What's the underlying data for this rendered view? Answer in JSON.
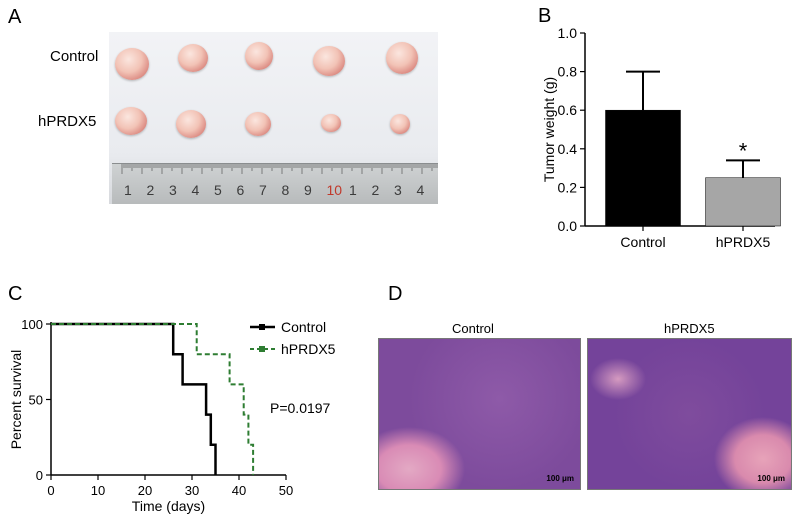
{
  "panels": {
    "a": {
      "letter": "A",
      "row_labels": [
        "Control",
        "hPRDX5"
      ],
      "ruler_numbers": [
        "1",
        "2",
        "3",
        "4",
        "5",
        "6",
        "7",
        "8",
        "9",
        "10",
        "1",
        "2",
        "3",
        "4"
      ]
    },
    "b": {
      "letter": "B"
    },
    "c": {
      "letter": "C",
      "annotation": "P=0.0197"
    },
    "d": {
      "letter": "D",
      "titles": [
        "Control",
        "hPRDX5"
      ],
      "scale_label": "100 μm"
    }
  },
  "colors": {
    "control_bar": "#000000",
    "hprdx5_bar": "#a6a6a6",
    "control_line": "#000000",
    "hprdx5_line": "#2e7d32"
  },
  "chart_data": [
    {
      "type": "bar",
      "panel": "B",
      "categories": [
        "Control",
        "hPRDX5"
      ],
      "values": [
        0.6,
        0.25
      ],
      "error_upper": [
        0.8,
        0.34
      ],
      "ylabel": "Tumor weight (g)",
      "ylim": [
        0,
        1.0
      ],
      "yticks": [
        "0.0",
        "0.2",
        "0.4",
        "0.6",
        "0.8",
        "1.0"
      ],
      "significance": [
        "",
        "*"
      ]
    },
    {
      "type": "line",
      "panel": "C",
      "xlabel": "Time (days)",
      "ylabel": "Percent survival",
      "xlim": [
        0,
        50
      ],
      "ylim": [
        0,
        100
      ],
      "xticks": [
        "0",
        "10",
        "20",
        "30",
        "40",
        "50"
      ],
      "yticks": [
        "0",
        "50",
        "100"
      ],
      "legend_position": "top-right",
      "series": [
        {
          "name": "Control",
          "steps": [
            [
              0,
              100
            ],
            [
              26,
              100
            ],
            [
              26,
              80
            ],
            [
              28,
              80
            ],
            [
              28,
              60
            ],
            [
              33,
              60
            ],
            [
              33,
              40
            ],
            [
              34,
              40
            ],
            [
              34,
              20
            ],
            [
              35,
              20
            ],
            [
              35,
              0
            ]
          ]
        },
        {
          "name": "hPRDX5",
          "steps": [
            [
              0,
              100
            ],
            [
              31,
              100
            ],
            [
              31,
              80
            ],
            [
              38,
              80
            ],
            [
              38,
              60
            ],
            [
              41,
              60
            ],
            [
              41,
              40
            ],
            [
              42,
              40
            ],
            [
              42,
              20
            ],
            [
              43,
              20
            ],
            [
              43,
              0
            ]
          ]
        }
      ]
    }
  ]
}
